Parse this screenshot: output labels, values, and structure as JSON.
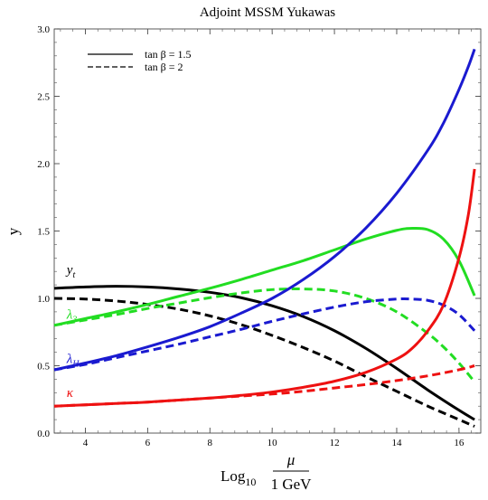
{
  "chart_data": {
    "type": "line",
    "title": "Adjoint MSSM Yukawas",
    "ylabel": "y",
    "xlabel": {
      "prefix": "Log",
      "subscript": "10",
      "numerator": "μ",
      "denominator": "1 GeV"
    },
    "xlim": [
      3,
      16.7
    ],
    "ylim": [
      0,
      3.0
    ],
    "xticks": [
      "4",
      "6",
      "8",
      "10",
      "12",
      "14",
      "16"
    ],
    "yticks": [
      "0.0",
      "0.5",
      "1.0",
      "1.5",
      "2.0",
      "2.5",
      "3.0"
    ],
    "legend": {
      "position": "top-left",
      "entries": [
        {
          "label": "tan β = 1.5",
          "style": "solid"
        },
        {
          "label": "tan β = 2",
          "style": "dashed"
        }
      ]
    },
    "curve_labels": [
      {
        "text": "y",
        "sub": "t",
        "color": "#000000",
        "x": 3.4,
        "y": 1.18
      },
      {
        "text": "λ",
        "sub": "3",
        "color": "#22dd22",
        "x": 3.4,
        "y": 0.85
      },
      {
        "text": "λ",
        "sub": "H",
        "color": "#1a1ad0",
        "x": 3.4,
        "y": 0.52
      },
      {
        "text": "κ",
        "sub": "",
        "color": "#ee1111",
        "x": 3.4,
        "y": 0.27
      }
    ],
    "series": [
      {
        "id": "yt-solid",
        "color": "#000000",
        "style": "solid",
        "x": [
          3,
          4,
          5,
          6,
          7,
          8,
          9,
          10,
          11,
          12,
          13,
          14,
          15,
          16,
          16.5
        ],
        "y": [
          1.075,
          1.085,
          1.09,
          1.085,
          1.07,
          1.045,
          1.005,
          0.945,
          0.865,
          0.76,
          0.63,
          0.48,
          0.32,
          0.17,
          0.1
        ]
      },
      {
        "id": "yt-dashed",
        "color": "#000000",
        "style": "dashed",
        "x": [
          3,
          4,
          5,
          6,
          7,
          8,
          9,
          10,
          11,
          12,
          13,
          14,
          15,
          16,
          16.5
        ],
        "y": [
          1.0,
          0.995,
          0.98,
          0.955,
          0.92,
          0.87,
          0.805,
          0.725,
          0.635,
          0.535,
          0.42,
          0.31,
          0.2,
          0.1,
          0.05
        ]
      },
      {
        "id": "lambda3-solid",
        "color": "#22dd22",
        "style": "solid",
        "x": [
          3,
          4,
          5,
          6,
          7,
          8,
          9,
          10,
          11,
          12,
          13,
          14,
          14.5,
          15,
          15.5,
          16,
          16.5
        ],
        "y": [
          0.8,
          0.85,
          0.9,
          0.955,
          1.015,
          1.075,
          1.14,
          1.21,
          1.28,
          1.36,
          1.44,
          1.505,
          1.52,
          1.51,
          1.44,
          1.28,
          1.02
        ]
      },
      {
        "id": "lambda3-dashed",
        "color": "#22dd22",
        "style": "dashed",
        "x": [
          3,
          4,
          5,
          6,
          7,
          8,
          9,
          10,
          11,
          12,
          13,
          14,
          15,
          15.5,
          16,
          16.5
        ],
        "y": [
          0.8,
          0.84,
          0.88,
          0.925,
          0.965,
          1.005,
          1.04,
          1.065,
          1.07,
          1.055,
          1.0,
          0.9,
          0.74,
          0.64,
          0.52,
          0.38
        ]
      },
      {
        "id": "lambdaH-solid",
        "color": "#1a1ad0",
        "style": "solid",
        "x": [
          3,
          4,
          5,
          6,
          7,
          8,
          9,
          10,
          11,
          12,
          13,
          14,
          15,
          15.5,
          16,
          16.3,
          16.5
        ],
        "y": [
          0.47,
          0.52,
          0.575,
          0.64,
          0.71,
          0.79,
          0.89,
          1.0,
          1.14,
          1.31,
          1.52,
          1.78,
          2.1,
          2.3,
          2.55,
          2.72,
          2.85
        ]
      },
      {
        "id": "lambdaH-dashed",
        "color": "#1a1ad0",
        "style": "dashed",
        "x": [
          3,
          4,
          5,
          6,
          7,
          8,
          9,
          10,
          11,
          12,
          13,
          14,
          14.5,
          15,
          15.5,
          16,
          16.5
        ],
        "y": [
          0.47,
          0.51,
          0.56,
          0.61,
          0.66,
          0.715,
          0.77,
          0.83,
          0.885,
          0.935,
          0.975,
          0.995,
          0.995,
          0.985,
          0.95,
          0.88,
          0.76
        ]
      },
      {
        "id": "kappa-solid",
        "color": "#ee1111",
        "style": "solid",
        "x": [
          3,
          4,
          5,
          6,
          7,
          8,
          9,
          10,
          11,
          12,
          13,
          14,
          14.5,
          15,
          15.5,
          16,
          16.3,
          16.5
        ],
        "y": [
          0.2,
          0.21,
          0.22,
          0.23,
          0.245,
          0.26,
          0.28,
          0.305,
          0.34,
          0.385,
          0.45,
          0.55,
          0.63,
          0.76,
          0.95,
          1.3,
          1.62,
          1.96
        ]
      },
      {
        "id": "kappa-dashed",
        "color": "#ee1111",
        "style": "dashed",
        "x": [
          3,
          4,
          5,
          6,
          7,
          8,
          9,
          10,
          11,
          12,
          13,
          14,
          15,
          16,
          16.5
        ],
        "y": [
          0.2,
          0.21,
          0.22,
          0.23,
          0.245,
          0.26,
          0.275,
          0.29,
          0.31,
          0.335,
          0.36,
          0.39,
          0.425,
          0.47,
          0.5
        ]
      }
    ]
  }
}
